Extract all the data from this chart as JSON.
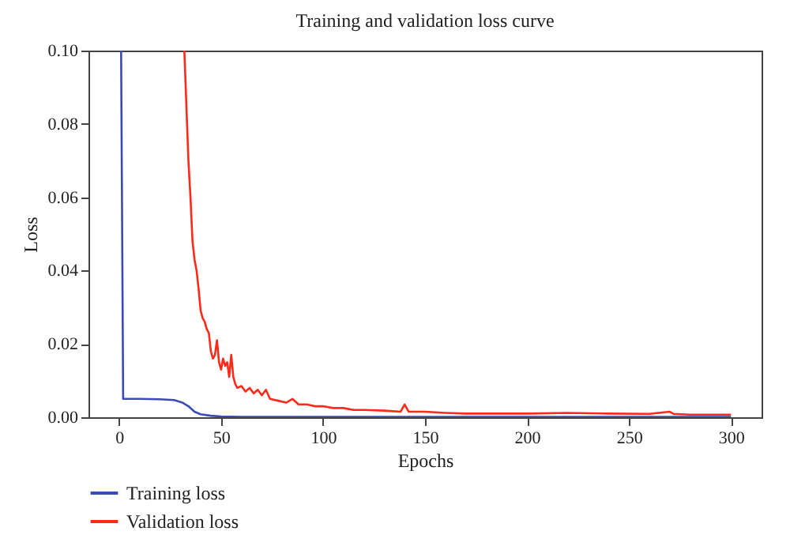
{
  "chart_data": {
    "type": "line",
    "title": "Training and validation loss curve",
    "xlabel": "Epochs",
    "ylabel": "Loss",
    "xlim": [
      -15,
      315
    ],
    "ylim": [
      0,
      0.1
    ],
    "xticks": [
      0,
      50,
      100,
      150,
      200,
      250,
      300
    ],
    "yticks": [
      {
        "value": 0,
        "label": "0.00"
      },
      {
        "value": 0.02,
        "label": "0.02"
      },
      {
        "value": 0.04,
        "label": "0.04"
      },
      {
        "value": 0.06,
        "label": "0.06"
      },
      {
        "value": 0.08,
        "label": "0.08"
      },
      {
        "value": 0.1,
        "label": "0.10"
      }
    ],
    "grid": false,
    "legend": "bottom left",
    "series": [
      {
        "name": "Training loss",
        "color": "#3b4bb5",
        "x": [
          1,
          2,
          10,
          20,
          27,
          31,
          34,
          37,
          40,
          45,
          50,
          60,
          100,
          300
        ],
        "values": [
          0.1,
          0.005,
          0.005,
          0.0049,
          0.0047,
          0.004,
          0.003,
          0.0015,
          0.0008,
          0.0004,
          0.0002,
          0.0001,
          0.0001,
          0.0001
        ]
      },
      {
        "name": "Validation loss",
        "color": "#ff2a1a",
        "x": [
          32,
          33,
          34,
          35,
          36,
          37,
          38,
          39,
          40,
          41,
          42,
          43,
          44,
          45,
          46,
          47,
          48,
          49,
          50,
          51,
          52,
          53,
          54,
          55,
          56,
          57,
          58,
          60,
          62,
          64,
          66,
          68,
          70,
          72,
          74,
          78,
          82,
          85,
          88,
          92,
          96,
          100,
          105,
          110,
          115,
          120,
          130,
          138,
          140,
          142,
          150,
          160,
          170,
          180,
          200,
          220,
          240,
          260,
          270,
          272,
          280,
          300
        ],
        "values": [
          0.1,
          0.085,
          0.07,
          0.06,
          0.048,
          0.043,
          0.04,
          0.035,
          0.029,
          0.027,
          0.026,
          0.024,
          0.023,
          0.018,
          0.016,
          0.017,
          0.021,
          0.015,
          0.013,
          0.016,
          0.014,
          0.015,
          0.011,
          0.017,
          0.011,
          0.009,
          0.008,
          0.0085,
          0.007,
          0.008,
          0.0065,
          0.0075,
          0.006,
          0.0075,
          0.005,
          0.0045,
          0.004,
          0.005,
          0.0035,
          0.0035,
          0.003,
          0.003,
          0.0025,
          0.0025,
          0.002,
          0.002,
          0.0018,
          0.0015,
          0.0035,
          0.0015,
          0.0015,
          0.0012,
          0.001,
          0.001,
          0.001,
          0.0012,
          0.001,
          0.0009,
          0.0015,
          0.0009,
          0.0007,
          0.0007
        ]
      }
    ]
  }
}
